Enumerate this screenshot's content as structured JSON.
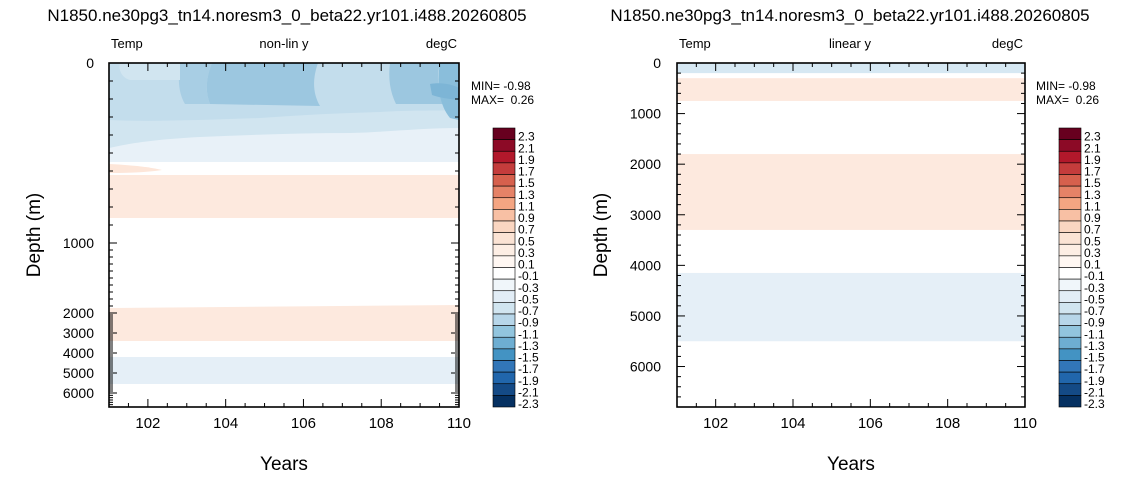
{
  "chart_data": [
    {
      "type": "heatmap",
      "title": "N1850.ne30pg3_tn14.noresm3_0_beta22.yr101.i488.20260805",
      "left_label": "Temp",
      "center_label": "non-lin y",
      "right_label": "degC",
      "xlabel": "Years",
      "ylabel": "Depth (m)",
      "xlim": [
        101,
        110
      ],
      "x_ticks": [
        102,
        104,
        106,
        108,
        110
      ],
      "y_axis": "nonlinear",
      "y_ticks": [
        0,
        1000,
        2000,
        3000,
        4000,
        5000,
        6000
      ],
      "stats": [
        "MIN= -0.98",
        "MAX=  0.26"
      ],
      "bands": [
        {
          "depth_from": 0,
          "depth_to": 420,
          "value": -0.4
        },
        {
          "depth_from": 520,
          "depth_to": 760,
          "value": 0.2
        },
        {
          "depth_from": 1850,
          "depth_to": 3300,
          "value": 0.2
        },
        {
          "depth_from": 4150,
          "depth_to": 5500,
          "value": -0.2
        }
      ]
    },
    {
      "type": "heatmap",
      "title": "N1850.ne30pg3_tn14.noresm3_0_beta22.yr101.i488.20260805",
      "left_label": "Temp",
      "center_label": "linear y",
      "right_label": "degC",
      "xlabel": "Years",
      "ylabel": "Depth (m)",
      "xlim": [
        101,
        110
      ],
      "ylim": [
        6800,
        0
      ],
      "x_ticks": [
        102,
        104,
        106,
        108,
        110
      ],
      "y_ticks": [
        0,
        1000,
        2000,
        3000,
        4000,
        5000,
        6000
      ],
      "stats": [
        "MIN= -0.98",
        "MAX=  0.26"
      ],
      "bands": [
        {
          "depth_from": 0,
          "depth_to": 200,
          "value": -0.3
        },
        {
          "depth_from": 300,
          "depth_to": 750,
          "value": 0.2
        },
        {
          "depth_from": 1800,
          "depth_to": 3300,
          "value": 0.2
        },
        {
          "depth_from": 4150,
          "depth_to": 5500,
          "value": -0.2
        }
      ]
    }
  ],
  "colorbar": {
    "labels": [
      "2.3",
      "2.1",
      "1.9",
      "1.7",
      "1.5",
      "1.3",
      "1.1",
      "0.9",
      "0.7",
      "0.5",
      "0.3",
      "0.1",
      "-0.1",
      "-0.3",
      "-0.5",
      "-0.7",
      "-0.9",
      "-1.1",
      "-1.3",
      "-1.5",
      "-1.7",
      "-1.9",
      "-2.1",
      "-2.3"
    ],
    "colors": [
      "#67001f",
      "#8c0a26",
      "#b2182b",
      "#c43c3c",
      "#d6604d",
      "#e58267",
      "#f4a582",
      "#f8c0a4",
      "#fad6c1",
      "#fbe3d4",
      "#fdeee4",
      "#fff7f2",
      "#ffffff",
      "#f0f6fa",
      "#e2edf6",
      "#d1e5f0",
      "#b7d6e9",
      "#92c5de",
      "#6eaed2",
      "#4393c3",
      "#3276b8",
      "#2166ac",
      "#144a86",
      "#053061"
    ]
  }
}
